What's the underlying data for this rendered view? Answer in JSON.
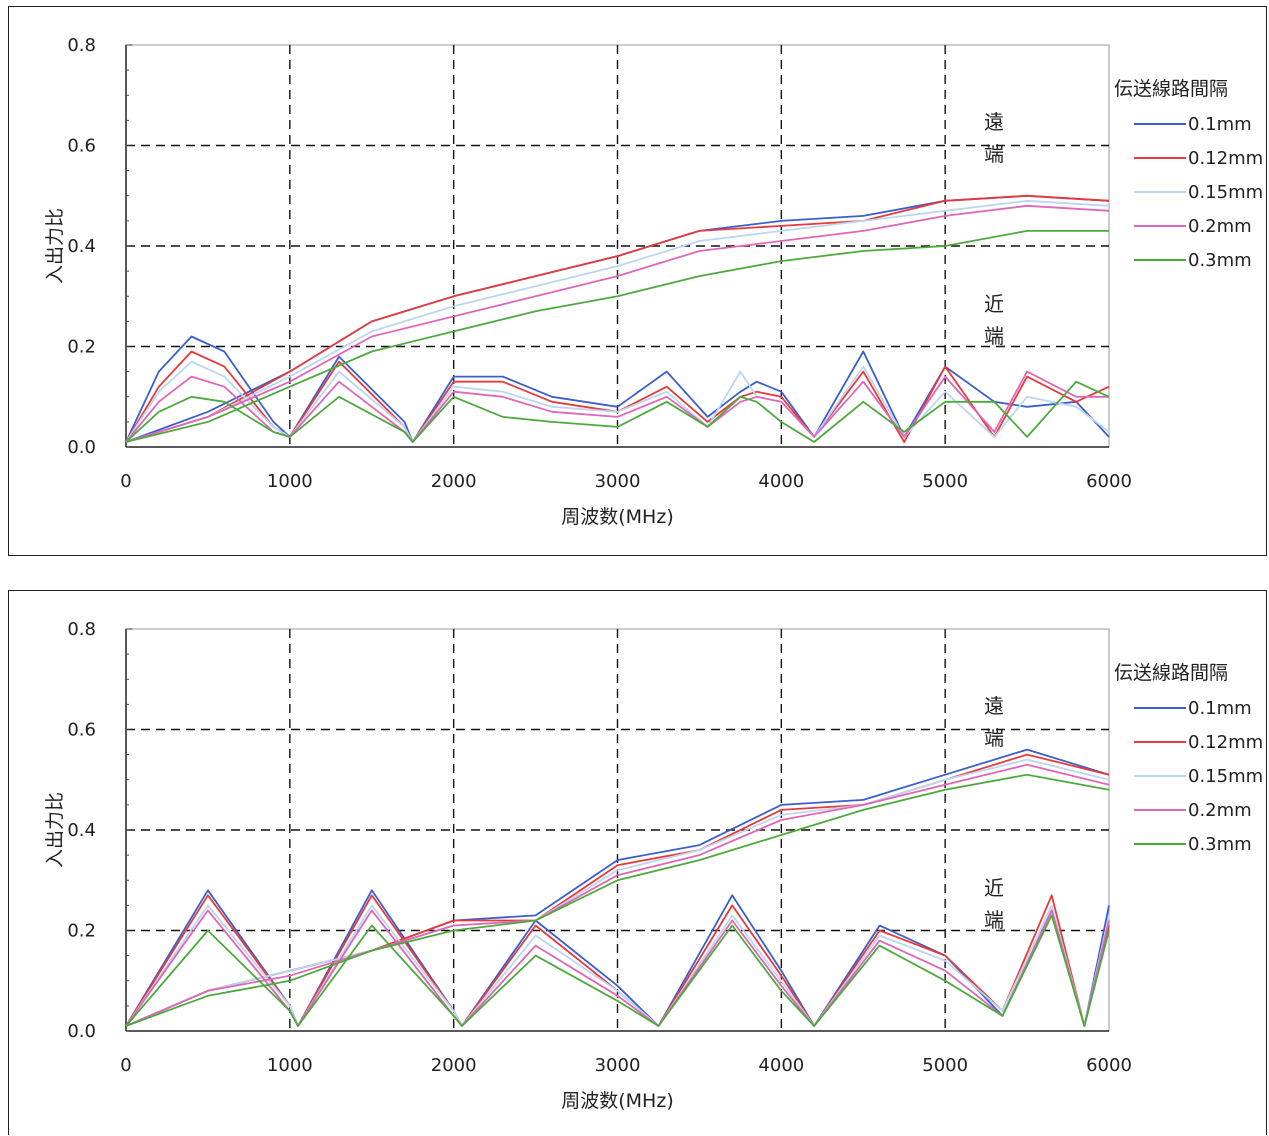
{
  "chart_data": [
    {
      "type": "line",
      "title": "",
      "xlabel": "周波数(MHz)",
      "ylabel": "入出力比",
      "xlim": [
        0,
        6000
      ],
      "ylim": [
        0,
        0.8
      ],
      "xticks": [
        "0",
        "1000",
        "2000",
        "3000",
        "4000",
        "5000",
        "6000"
      ],
      "yticks": [
        "0.0",
        "0.2",
        "0.4",
        "0.6",
        "0.8"
      ],
      "grid": "dashed",
      "legend_title": "伝送線路間隔",
      "legend_position": "right",
      "annotations": {
        "far_end": [
          "遠",
          "端"
        ],
        "near_end": [
          "近",
          "端"
        ]
      },
      "series": [
        {
          "name": "0.1mm",
          "color": "#3a5fcd",
          "far_end": {
            "x": [
              0,
              500,
              1000,
              1500,
              2000,
              2500,
              3000,
              3500,
              4000,
              4500,
              5000,
              5500,
              6000
            ],
            "y": [
              0.01,
              0.07,
              0.15,
              0.25,
              0.3,
              0.34,
              0.38,
              0.43,
              0.45,
              0.46,
              0.49,
              0.5,
              0.49
            ]
          },
          "near_end": {
            "x": [
              0,
              200,
              400,
              600,
              900,
              1000,
              1300,
              1700,
              1750,
              2000,
              2300,
              2600,
              3000,
              3300,
              3550,
              3750,
              3850,
              4000,
              4200,
              4500,
              4750,
              5000,
              5300,
              5500,
              5800,
              6000
            ],
            "y": [
              0.01,
              0.15,
              0.22,
              0.19,
              0.05,
              0.02,
              0.18,
              0.05,
              0.01,
              0.14,
              0.14,
              0.1,
              0.08,
              0.15,
              0.06,
              0.11,
              0.13,
              0.11,
              0.02,
              0.19,
              0.02,
              0.16,
              0.09,
              0.08,
              0.09,
              0.02
            ]
          }
        },
        {
          "name": "0.12mm",
          "color": "#e83a3a",
          "far_end": {
            "x": [
              0,
              500,
              1000,
              1500,
              2000,
              2500,
              3000,
              3500,
              4000,
              4500,
              5000,
              5500,
              6000
            ],
            "y": [
              0.01,
              0.06,
              0.15,
              0.25,
              0.3,
              0.34,
              0.38,
              0.43,
              0.44,
              0.45,
              0.49,
              0.5,
              0.49
            ]
          },
          "near_end": {
            "x": [
              0,
              200,
              400,
              600,
              900,
              1000,
              1300,
              1700,
              1750,
              2000,
              2300,
              2600,
              3000,
              3300,
              3550,
              3750,
              3850,
              4000,
              4200,
              4500,
              4750,
              5000,
              5300,
              5500,
              5800,
              6000
            ],
            "y": [
              0.01,
              0.12,
              0.19,
              0.16,
              0.04,
              0.02,
              0.17,
              0.04,
              0.01,
              0.13,
              0.13,
              0.09,
              0.07,
              0.12,
              0.05,
              0.1,
              0.11,
              0.1,
              0.02,
              0.15,
              0.01,
              0.16,
              0.02,
              0.14,
              0.09,
              0.12
            ]
          }
        },
        {
          "name": "0.15mm",
          "color": "#bcd6f0",
          "far_end": {
            "x": [
              0,
              500,
              1000,
              1500,
              2000,
              2500,
              3000,
              3500,
              4000,
              4500,
              5000,
              5500,
              6000
            ],
            "y": [
              0.01,
              0.06,
              0.14,
              0.23,
              0.28,
              0.32,
              0.36,
              0.41,
              0.43,
              0.45,
              0.47,
              0.49,
              0.48
            ]
          },
          "near_end": {
            "x": [
              0,
              200,
              400,
              600,
              900,
              1000,
              1300,
              1700,
              1750,
              2000,
              2300,
              2600,
              3000,
              3300,
              3550,
              3750,
              3850,
              4000,
              4200,
              4500,
              4750,
              5000,
              5300,
              5500,
              5800,
              6000
            ],
            "y": [
              0.01,
              0.11,
              0.17,
              0.14,
              0.04,
              0.02,
              0.15,
              0.04,
              0.01,
              0.12,
              0.11,
              0.08,
              0.07,
              0.11,
              0.04,
              0.15,
              0.1,
              0.09,
              0.02,
              0.16,
              0.02,
              0.11,
              0.02,
              0.1,
              0.08,
              0.03
            ]
          }
        },
        {
          "name": "0.2mm",
          "color": "#e066b8",
          "far_end": {
            "x": [
              0,
              500,
              1000,
              1500,
              2000,
              2500,
              3000,
              3500,
              4000,
              4500,
              5000,
              5500,
              6000
            ],
            "y": [
              0.01,
              0.06,
              0.13,
              0.22,
              0.26,
              0.3,
              0.34,
              0.39,
              0.41,
              0.43,
              0.46,
              0.48,
              0.47
            ]
          },
          "near_end": {
            "x": [
              0,
              200,
              400,
              600,
              900,
              1000,
              1300,
              1700,
              1750,
              2000,
              2300,
              2600,
              3000,
              3300,
              3550,
              3750,
              3850,
              4000,
              4200,
              4500,
              4750,
              5000,
              5300,
              5500,
              5800,
              6000
            ],
            "y": [
              0.01,
              0.09,
              0.14,
              0.12,
              0.03,
              0.02,
              0.13,
              0.03,
              0.01,
              0.11,
              0.1,
              0.07,
              0.06,
              0.1,
              0.04,
              0.09,
              0.1,
              0.09,
              0.02,
              0.13,
              0.02,
              0.14,
              0.03,
              0.15,
              0.1,
              0.1
            ]
          }
        },
        {
          "name": "0.3mm",
          "color": "#4caa3c",
          "far_end": {
            "x": [
              0,
              500,
              1000,
              1500,
              2000,
              2500,
              3000,
              3500,
              4000,
              4500,
              5000,
              5500,
              6000
            ],
            "y": [
              0.01,
              0.05,
              0.12,
              0.19,
              0.23,
              0.27,
              0.3,
              0.34,
              0.37,
              0.39,
              0.4,
              0.43,
              0.43
            ]
          },
          "near_end": {
            "x": [
              0,
              200,
              400,
              600,
              900,
              1000,
              1300,
              1700,
              1750,
              2000,
              2300,
              2600,
              3000,
              3300,
              3550,
              3750,
              3850,
              4000,
              4200,
              4500,
              4750,
              5000,
              5300,
              5500,
              5800,
              6000
            ],
            "y": [
              0.01,
              0.07,
              0.1,
              0.09,
              0.03,
              0.02,
              0.1,
              0.03,
              0.01,
              0.1,
              0.06,
              0.05,
              0.04,
              0.09,
              0.04,
              0.1,
              0.09,
              0.05,
              0.01,
              0.09,
              0.03,
              0.09,
              0.09,
              0.02,
              0.13,
              0.1
            ]
          }
        }
      ]
    },
    {
      "type": "line",
      "title": "",
      "xlabel": "周波数(MHz)",
      "ylabel": "入出力比",
      "xlim": [
        0,
        6000
      ],
      "ylim": [
        0,
        0.8
      ],
      "xticks": [
        "0",
        "1000",
        "2000",
        "3000",
        "4000",
        "5000",
        "6000"
      ],
      "yticks": [
        "0.0",
        "0.2",
        "0.4",
        "0.6",
        "0.8"
      ],
      "grid": "dashed",
      "legend_title": "伝送線路間隔",
      "legend_position": "right",
      "annotations": {
        "far_end": [
          "遠",
          "端"
        ],
        "near_end": [
          "近",
          "端"
        ]
      },
      "series": [
        {
          "name": "0.1mm",
          "color": "#3a5fcd",
          "far_end": {
            "x": [
              0,
              500,
              1000,
              1500,
              2000,
              2500,
              3000,
              3500,
              4000,
              4500,
              5000,
              5500,
              6000
            ],
            "y": [
              0.01,
              0.08,
              0.12,
              0.16,
              0.22,
              0.23,
              0.34,
              0.37,
              0.45,
              0.46,
              0.51,
              0.56,
              0.51
            ]
          },
          "near_end": {
            "x": [
              0,
              500,
              1000,
              1050,
              1500,
              2000,
              2050,
              2500,
              3000,
              3250,
              3700,
              4000,
              4200,
              4600,
              5000,
              5350,
              5650,
              5850,
              6000
            ],
            "y": [
              0.01,
              0.28,
              0.05,
              0.01,
              0.28,
              0.04,
              0.01,
              0.22,
              0.09,
              0.01,
              0.27,
              0.12,
              0.01,
              0.21,
              0.15,
              0.03,
              0.24,
              0.01,
              0.25
            ]
          }
        },
        {
          "name": "0.12mm",
          "color": "#e83a3a",
          "far_end": {
            "x": [
              0,
              500,
              1000,
              1500,
              2000,
              2500,
              3000,
              3500,
              4000,
              4500,
              5000,
              5500,
              6000
            ],
            "y": [
              0.01,
              0.08,
              0.12,
              0.16,
              0.22,
              0.22,
              0.33,
              0.36,
              0.44,
              0.45,
              0.5,
              0.55,
              0.51
            ]
          },
          "near_end": {
            "x": [
              0,
              500,
              1000,
              1050,
              1500,
              2000,
              2050,
              2500,
              3000,
              3250,
              3700,
              4000,
              4200,
              4600,
              5000,
              5350,
              5650,
              5850,
              6000
            ],
            "y": [
              0.01,
              0.27,
              0.05,
              0.01,
              0.27,
              0.04,
              0.01,
              0.21,
              0.08,
              0.01,
              0.25,
              0.11,
              0.01,
              0.2,
              0.15,
              0.04,
              0.27,
              0.01,
              0.21
            ]
          }
        },
        {
          "name": "0.15mm",
          "color": "#bcd6f0",
          "far_end": {
            "x": [
              0,
              500,
              1000,
              1500,
              2000,
              2500,
              3000,
              3500,
              4000,
              4500,
              5000,
              5500,
              6000
            ],
            "y": [
              0.01,
              0.08,
              0.12,
              0.16,
              0.21,
              0.22,
              0.32,
              0.36,
              0.43,
              0.45,
              0.5,
              0.54,
              0.5
            ]
          },
          "near_end": {
            "x": [
              0,
              500,
              1000,
              1050,
              1500,
              2000,
              2050,
              2500,
              3000,
              3250,
              3700,
              4000,
              4200,
              4600,
              5000,
              5350,
              5650,
              5850,
              6000
            ],
            "y": [
              0.01,
              0.25,
              0.05,
              0.01,
              0.25,
              0.04,
              0.01,
              0.19,
              0.08,
              0.01,
              0.23,
              0.1,
              0.01,
              0.19,
              0.14,
              0.04,
              0.25,
              0.01,
              0.23
            ]
          }
        },
        {
          "name": "0.2mm",
          "color": "#e066b8",
          "far_end": {
            "x": [
              0,
              500,
              1000,
              1500,
              2000,
              2500,
              3000,
              3500,
              4000,
              4500,
              5000,
              5500,
              6000
            ],
            "y": [
              0.01,
              0.08,
              0.11,
              0.16,
              0.21,
              0.22,
              0.31,
              0.35,
              0.42,
              0.45,
              0.49,
              0.53,
              0.49
            ]
          },
          "near_end": {
            "x": [
              0,
              500,
              1000,
              1050,
              1500,
              2000,
              2050,
              2500,
              3000,
              3250,
              3700,
              4000,
              4200,
              4600,
              5000,
              5350,
              5650,
              5850,
              6000
            ],
            "y": [
              0.01,
              0.24,
              0.04,
              0.01,
              0.24,
              0.03,
              0.01,
              0.17,
              0.07,
              0.01,
              0.22,
              0.09,
              0.01,
              0.18,
              0.12,
              0.03,
              0.24,
              0.01,
              0.22
            ]
          }
        },
        {
          "name": "0.3mm",
          "color": "#4caa3c",
          "far_end": {
            "x": [
              0,
              500,
              1000,
              1500,
              2000,
              2500,
              3000,
              3500,
              4000,
              4500,
              5000,
              5500,
              6000
            ],
            "y": [
              0.01,
              0.07,
              0.1,
              0.16,
              0.2,
              0.22,
              0.3,
              0.34,
              0.39,
              0.44,
              0.48,
              0.51,
              0.48
            ]
          },
          "near_end": {
            "x": [
              0,
              500,
              1000,
              1050,
              1500,
              2000,
              2050,
              2500,
              3000,
              3250,
              3700,
              4000,
              4200,
              4600,
              5000,
              5350,
              5650,
              5850,
              6000
            ],
            "y": [
              0.01,
              0.2,
              0.04,
              0.01,
              0.21,
              0.03,
              0.01,
              0.15,
              0.06,
              0.01,
              0.21,
              0.08,
              0.01,
              0.17,
              0.1,
              0.03,
              0.23,
              0.01,
              0.2
            ]
          }
        }
      ]
    }
  ]
}
